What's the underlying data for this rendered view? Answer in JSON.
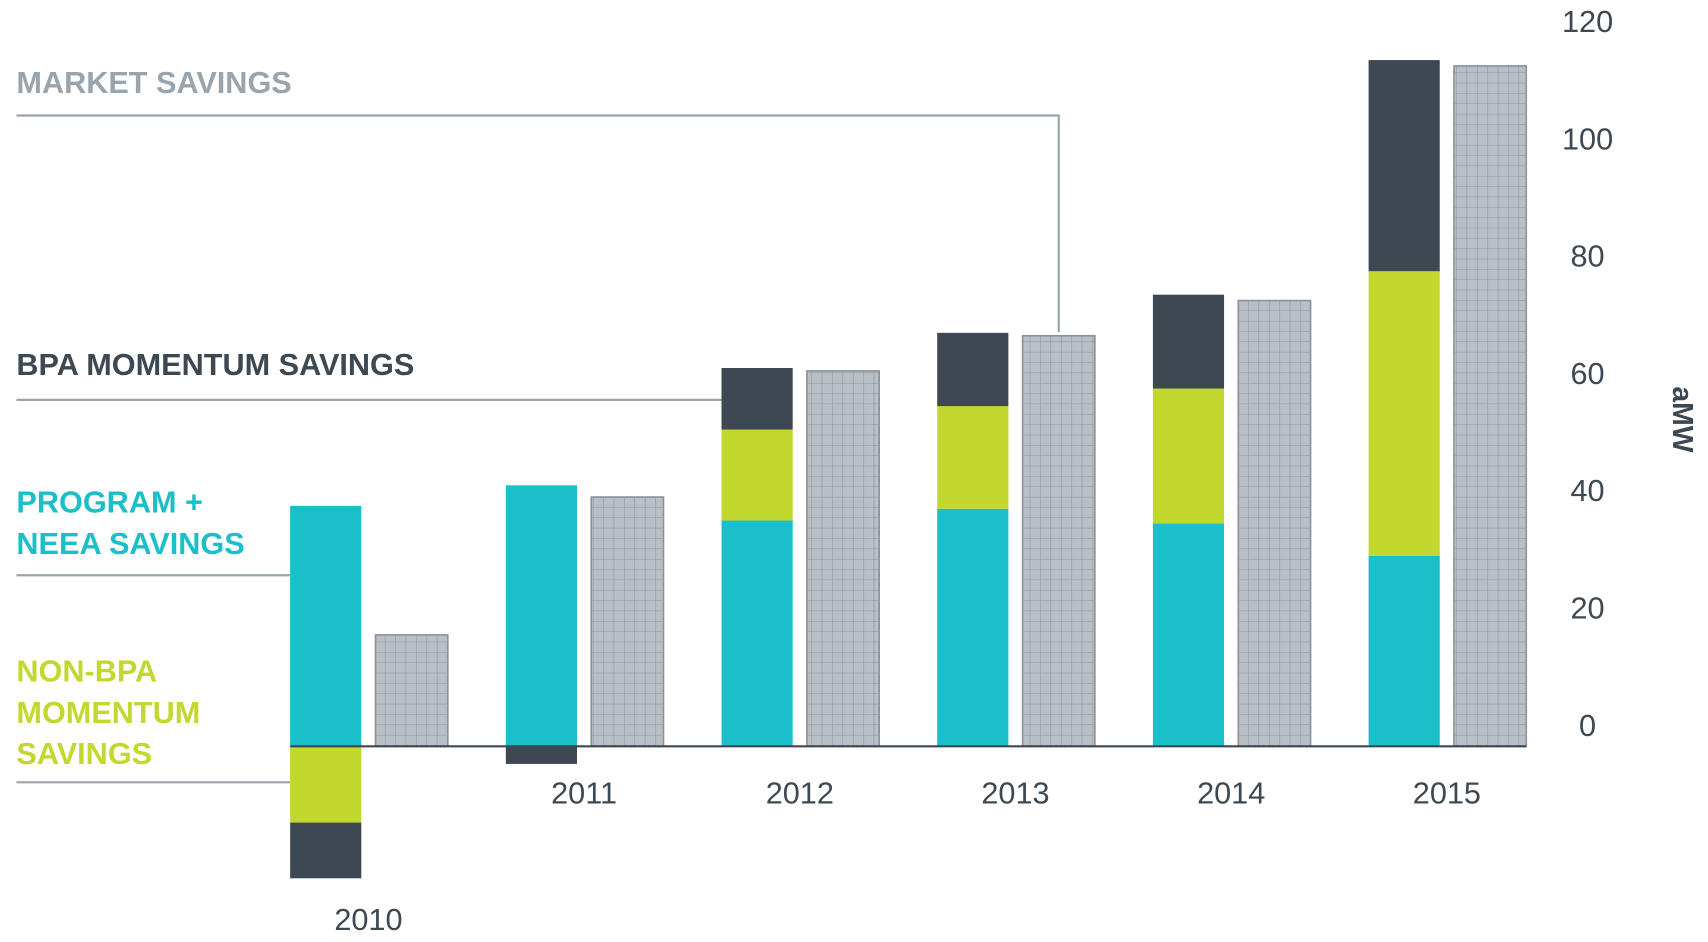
{
  "chart_data": {
    "type": "bar",
    "categories": [
      "2010",
      "2011",
      "2012",
      "2013",
      "2014",
      "2015"
    ],
    "series": [
      {
        "name": [
          "PROGRAM +",
          "NEEA SAVINGS"
        ],
        "color": "#1bbfc9",
        "values": [
          41,
          44.5,
          38.5,
          40.5,
          38,
          32.5
        ]
      },
      {
        "name": [
          "NON-BPA",
          "MOMENTUM",
          "SAVINGS"
        ],
        "color": "#c2d82e",
        "values": [
          -13,
          null,
          15.5,
          17.5,
          23,
          48.5
        ]
      },
      {
        "name": [
          "BPA MOMENTUM SAVINGS"
        ],
        "color": "#3d4852",
        "values": [
          -9.5,
          -3,
          10.5,
          12.5,
          16,
          36
        ]
      },
      {
        "name": [
          "MARKET SAVINGS"
        ],
        "color": "#b8bfc6",
        "pattern": "grid",
        "values": [
          19,
          42.5,
          64,
          70,
          76,
          116
        ]
      }
    ],
    "ylabel": "aMW",
    "ylim": [
      -30,
      120
    ],
    "yticks": [
      0,
      20,
      40,
      60,
      80,
      100,
      120
    ]
  }
}
